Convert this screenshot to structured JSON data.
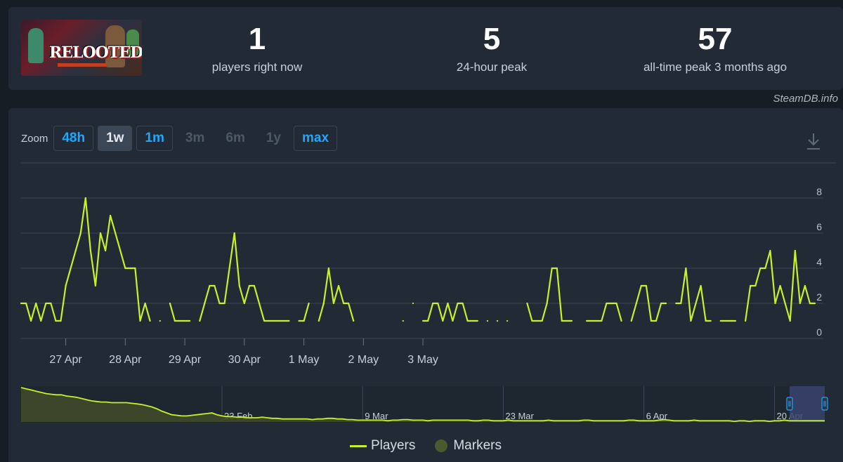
{
  "game": {
    "logo_text": "RELOOTED"
  },
  "stats": [
    {
      "value": "1",
      "label": "players right now"
    },
    {
      "value": "5",
      "label": "24-hour peak"
    },
    {
      "value": "57",
      "label": "all-time peak 3 months ago"
    }
  ],
  "brand": "SteamDB.info",
  "zoom": {
    "label": "Zoom",
    "buttons": [
      {
        "label": "48h",
        "state": "active"
      },
      {
        "label": "1w",
        "state": "selected"
      },
      {
        "label": "1m",
        "state": "active"
      },
      {
        "label": "3m",
        "state": "disabled"
      },
      {
        "label": "6m",
        "state": "disabled"
      },
      {
        "label": "1y",
        "state": "disabled"
      },
      {
        "label": "max",
        "state": "active"
      }
    ]
  },
  "legend": {
    "players": "Players",
    "markers": "Markers"
  },
  "colors": {
    "line": "#c5f22a",
    "marker": "#4b5a2e",
    "navigator_fill": "#3f4a2a",
    "selection": "#3a4470",
    "accent": "#1ea7ff"
  },
  "chart_data": {
    "type": "line",
    "title": "",
    "xlabel": "",
    "ylabel": "",
    "ylim": [
      0,
      10
    ],
    "yticks": [
      0,
      2,
      4,
      6,
      8
    ],
    "x_start": "2025-04-26T06:00",
    "x_step_hours": 2,
    "xticks": [
      "27 Apr",
      "28 Apr",
      "29 Apr",
      "30 Apr",
      "1 May",
      "2 May",
      "3 May"
    ],
    "series": [
      {
        "name": "Players",
        "values": [
          2,
          2,
          1,
          2,
          1,
          2,
          2,
          1,
          1,
          3,
          4,
          5,
          6,
          8,
          5,
          3,
          6,
          5,
          7,
          6,
          5,
          4,
          4,
          4,
          1,
          2,
          1,
          null,
          1,
          null,
          2,
          1,
          1,
          1,
          1,
          null,
          1,
          2,
          3,
          3,
          2,
          2,
          4,
          6,
          3,
          2,
          3,
          3,
          2,
          1,
          1,
          1,
          1,
          1,
          1,
          null,
          1,
          1,
          2,
          null,
          1,
          2,
          4,
          2,
          3,
          2,
          2,
          1,
          null,
          null,
          null,
          null,
          null,
          null,
          null,
          null,
          null,
          1,
          null,
          2,
          null,
          1,
          1,
          2,
          2,
          1,
          2,
          1,
          2,
          2,
          1,
          1,
          1,
          null,
          1,
          null,
          1,
          null,
          1,
          null,
          null,
          null,
          2,
          1,
          1,
          1,
          2,
          4,
          4,
          1,
          1,
          1,
          null,
          null,
          1,
          1,
          1,
          1,
          2,
          2,
          2,
          1,
          null,
          1,
          2,
          3,
          3,
          1,
          1,
          2,
          2,
          null,
          2,
          2,
          4,
          1,
          2,
          3,
          1,
          1,
          null,
          1,
          1,
          1,
          1,
          null,
          1,
          3,
          3,
          4,
          4,
          5,
          2,
          3,
          2,
          1,
          5,
          2,
          3,
          2,
          2
        ]
      }
    ],
    "navigator": {
      "xticks": [
        "23 Feb",
        "9 Mar",
        "23 Mar",
        "6 Apr",
        "20 Apr"
      ],
      "values": [
        57,
        55,
        53,
        51,
        49,
        47,
        46,
        45,
        45,
        43,
        42,
        41,
        39,
        37,
        35,
        34,
        33,
        33,
        32,
        32,
        32,
        32,
        31,
        30,
        29,
        27,
        25,
        22,
        18,
        15,
        12,
        11,
        10,
        10,
        11,
        12,
        13,
        14,
        15,
        12,
        10,
        9,
        9,
        8,
        8,
        7,
        7,
        7,
        8,
        7,
        6,
        6,
        5,
        5,
        5,
        5,
        5,
        5,
        4,
        5,
        5,
        6,
        6,
        5,
        5,
        4,
        4,
        3,
        3,
        3,
        3,
        3,
        3,
        2,
        3,
        3,
        4,
        4,
        3,
        3,
        3,
        2,
        3,
        3,
        3,
        3,
        3,
        3,
        3,
        3,
        2,
        2,
        3,
        3,
        2,
        2,
        2,
        3,
        2,
        2,
        2,
        2,
        2,
        2,
        2,
        3,
        2,
        2,
        2,
        2,
        2,
        2,
        3,
        3,
        2,
        2,
        2,
        2,
        2,
        2,
        2,
        3,
        3,
        2,
        2,
        2,
        2,
        3,
        4,
        3,
        2,
        2,
        2,
        2,
        3,
        2,
        2,
        2,
        2,
        2,
        2,
        2,
        1,
        2,
        2,
        1,
        2,
        2,
        2,
        1,
        2,
        2,
        3,
        2,
        2,
        2,
        2,
        2,
        2,
        2,
        2
      ]
    }
  }
}
